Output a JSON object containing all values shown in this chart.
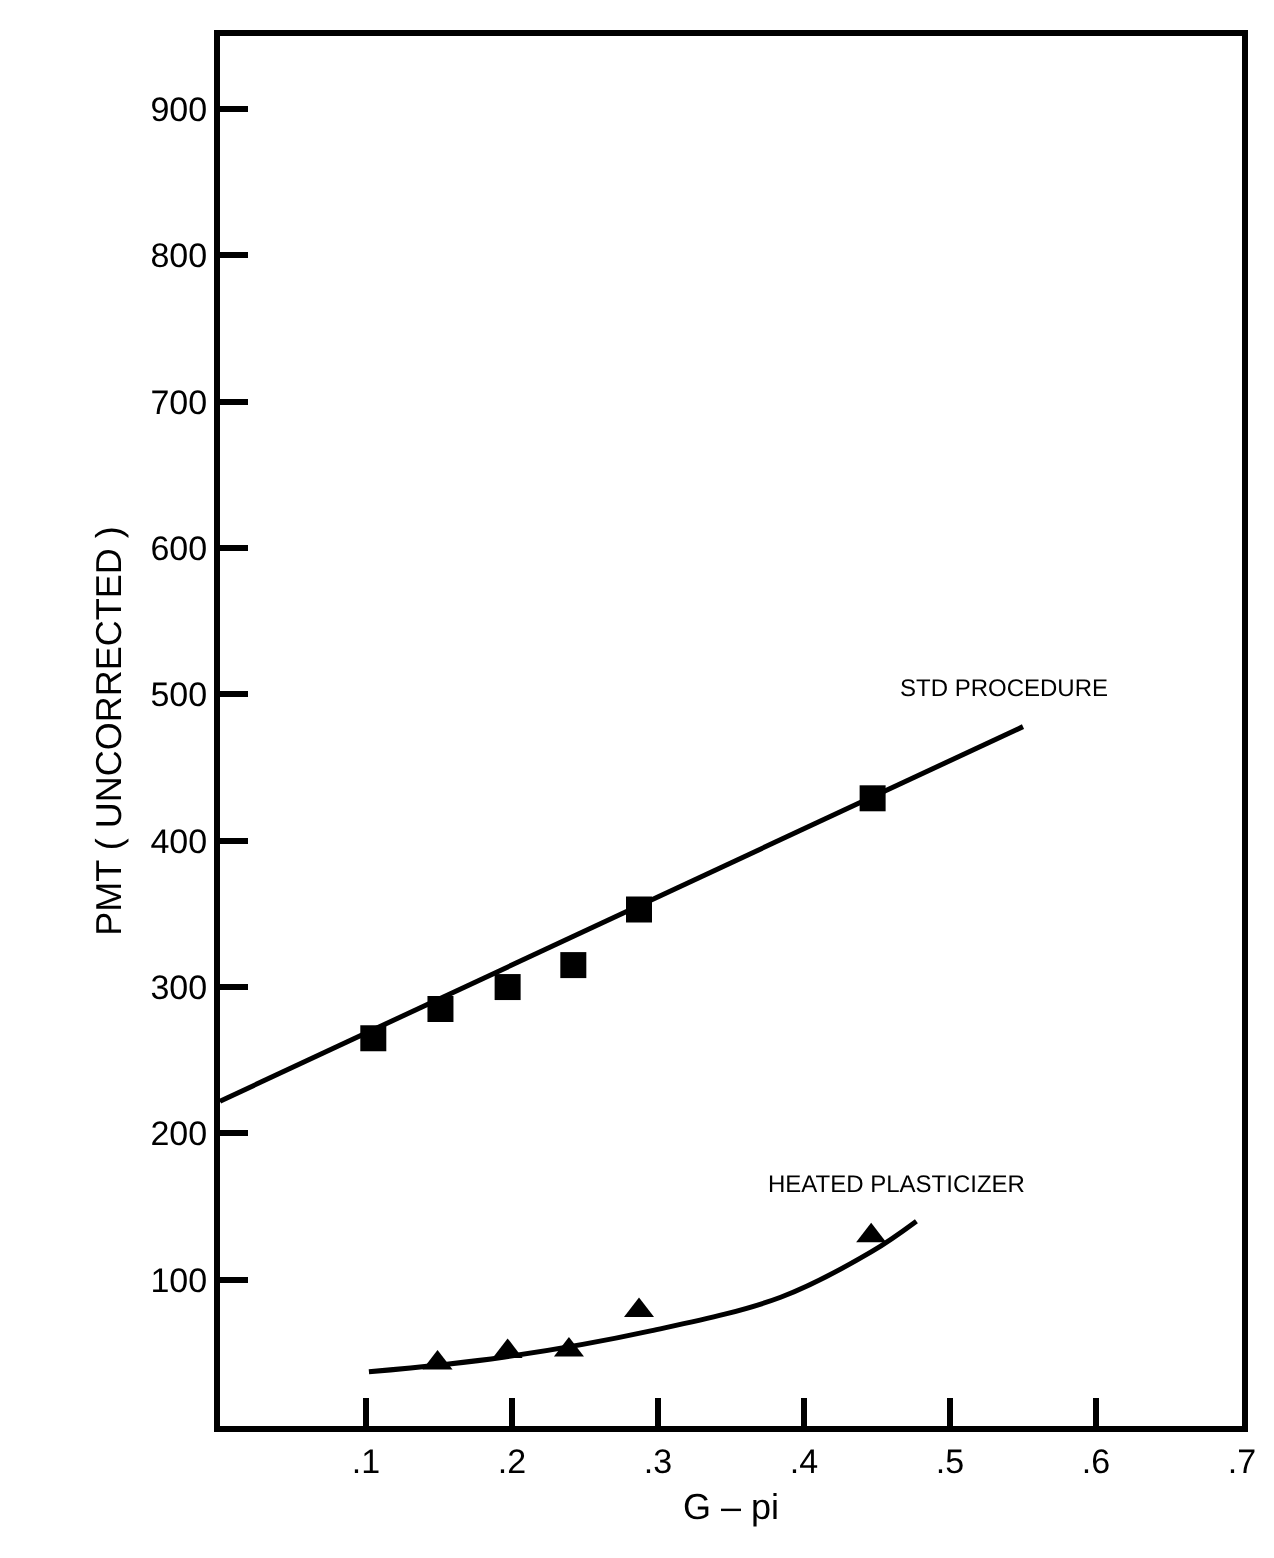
{
  "chart_data": {
    "type": "scatter",
    "xlabel": "G – pi",
    "ylabel": "PMT ( UNCORRECTED )",
    "xlim": [
      0,
      0.7
    ],
    "ylim": [
      0,
      950
    ],
    "xticks": [
      {
        "value": 0.1,
        "label": ".1"
      },
      {
        "value": 0.2,
        "label": ".2"
      },
      {
        "value": 0.3,
        "label": ".3"
      },
      {
        "value": 0.4,
        "label": ".4"
      },
      {
        "value": 0.5,
        "label": ".5"
      },
      {
        "value": 0.6,
        "label": ".6"
      },
      {
        "value": 0.7,
        "label": ".7"
      }
    ],
    "yticks": [
      100,
      200,
      300,
      400,
      500,
      600,
      700,
      800,
      900
    ],
    "grid": false,
    "series": [
      {
        "marker": "square",
        "color": "#000000",
        "x": [
          0.105,
          0.151,
          0.197,
          0.242,
          0.287,
          0.447
        ],
        "values": [
          265,
          285,
          300,
          315,
          353,
          429
        ]
      },
      {
        "type": "line",
        "marker": "none",
        "line_style": "solid",
        "color": "#000000",
        "x": [
          0,
          0.55
        ],
        "values": [
          222,
          478
        ]
      },
      {
        "marker": "triangle",
        "color": "#000000",
        "x": [
          0.149,
          0.197,
          0.239,
          0.287,
          0.446
        ],
        "values": [
          43,
          51,
          52,
          79,
          130
        ]
      },
      {
        "type": "line",
        "marker": "none",
        "line_style": "solid",
        "color": "#000000",
        "x": [
          0.102,
          0.194,
          0.295,
          0.384,
          0.446,
          0.477
        ],
        "values": [
          37,
          47,
          65,
          88,
          119,
          140
        ]
      }
    ],
    "annotations": [
      "STD PROCEDURE",
      "HEATED PLASTICIZER"
    ]
  }
}
